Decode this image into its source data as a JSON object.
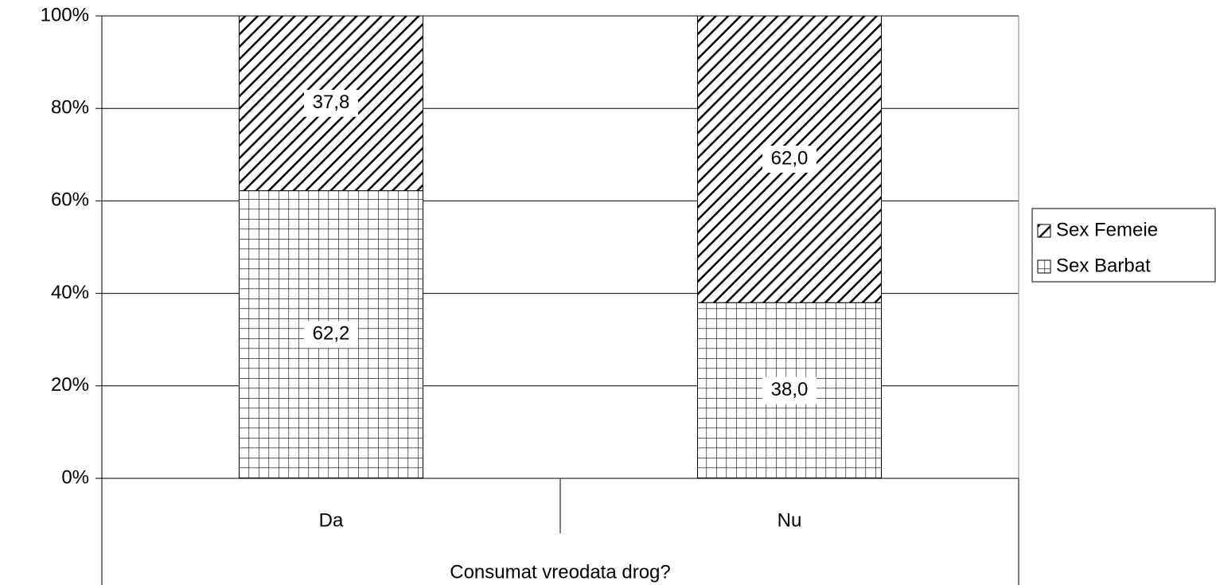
{
  "chart_data": {
    "type": "stacked_bar_100",
    "categories": [
      "Da",
      "Nu"
    ],
    "x_label": "Consumat vreodata drog?",
    "series": [
      {
        "name": "Sex Barbat",
        "color": "#000000",
        "pattern": "grid",
        "values": [
          62.2,
          38.0
        ],
        "value_labels": [
          "62,2",
          "38,0"
        ]
      },
      {
        "name": "Sex Femeie",
        "color": "#000000",
        "pattern": "diagonal",
        "values": [
          37.8,
          62.0
        ],
        "value_labels": [
          "37,8",
          "62,0"
        ]
      }
    ],
    "ylim": [
      0,
      100
    ],
    "yticks": [
      {
        "value": 0,
        "label": "0%"
      },
      {
        "value": 20,
        "label": "20%"
      },
      {
        "value": 40,
        "label": "40%"
      },
      {
        "value": 60,
        "label": "60%"
      },
      {
        "value": 80,
        "label": "80%"
      },
      {
        "value": 100,
        "label": "100%"
      }
    ],
    "grid": true,
    "legend": "right"
  }
}
